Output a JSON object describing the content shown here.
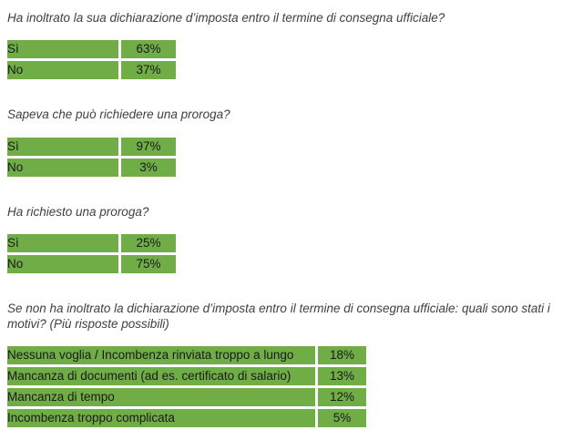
{
  "colors": {
    "cell_green": "#70AD47",
    "question_text": "#3f3f3f",
    "cell_text": "#1a1a1a",
    "background": "#ffffff"
  },
  "sections": [
    {
      "question": "Ha inoltrato la sua dichiarazione d’imposta entro il termine di consegna ufficiale?",
      "rows": [
        {
          "label": "Sì",
          "value": "63%"
        },
        {
          "label": "No",
          "value": "37%"
        }
      ]
    },
    {
      "question": "Sapeva che può richiedere una proroga?",
      "rows": [
        {
          "label": "Sì",
          "value": "97%"
        },
        {
          "label": "No",
          "value": "3%"
        }
      ]
    },
    {
      "question": "Ha richiesto una proroga?",
      "rows": [
        {
          "label": "Sì",
          "value": "25%"
        },
        {
          "label": "No",
          "value": "75%"
        }
      ]
    },
    {
      "question": "Se non ha inoltrato la dichiarazione d’imposta entro il termine di consegna ufficiale: quali sono stati i motivi? (Più risposte possibili)",
      "rows": [
        {
          "label": "Nessuna voglia / Incombenza rinviata troppo a lungo",
          "value": "18%"
        },
        {
          "label": "Mancanza di documenti (ad es. certificato di salario)",
          "value": "13%"
        },
        {
          "label": "Mancanza di tempo",
          "value": "12%"
        },
        {
          "label": "Incombenza troppo complicata",
          "value": "5%"
        }
      ]
    }
  ]
}
